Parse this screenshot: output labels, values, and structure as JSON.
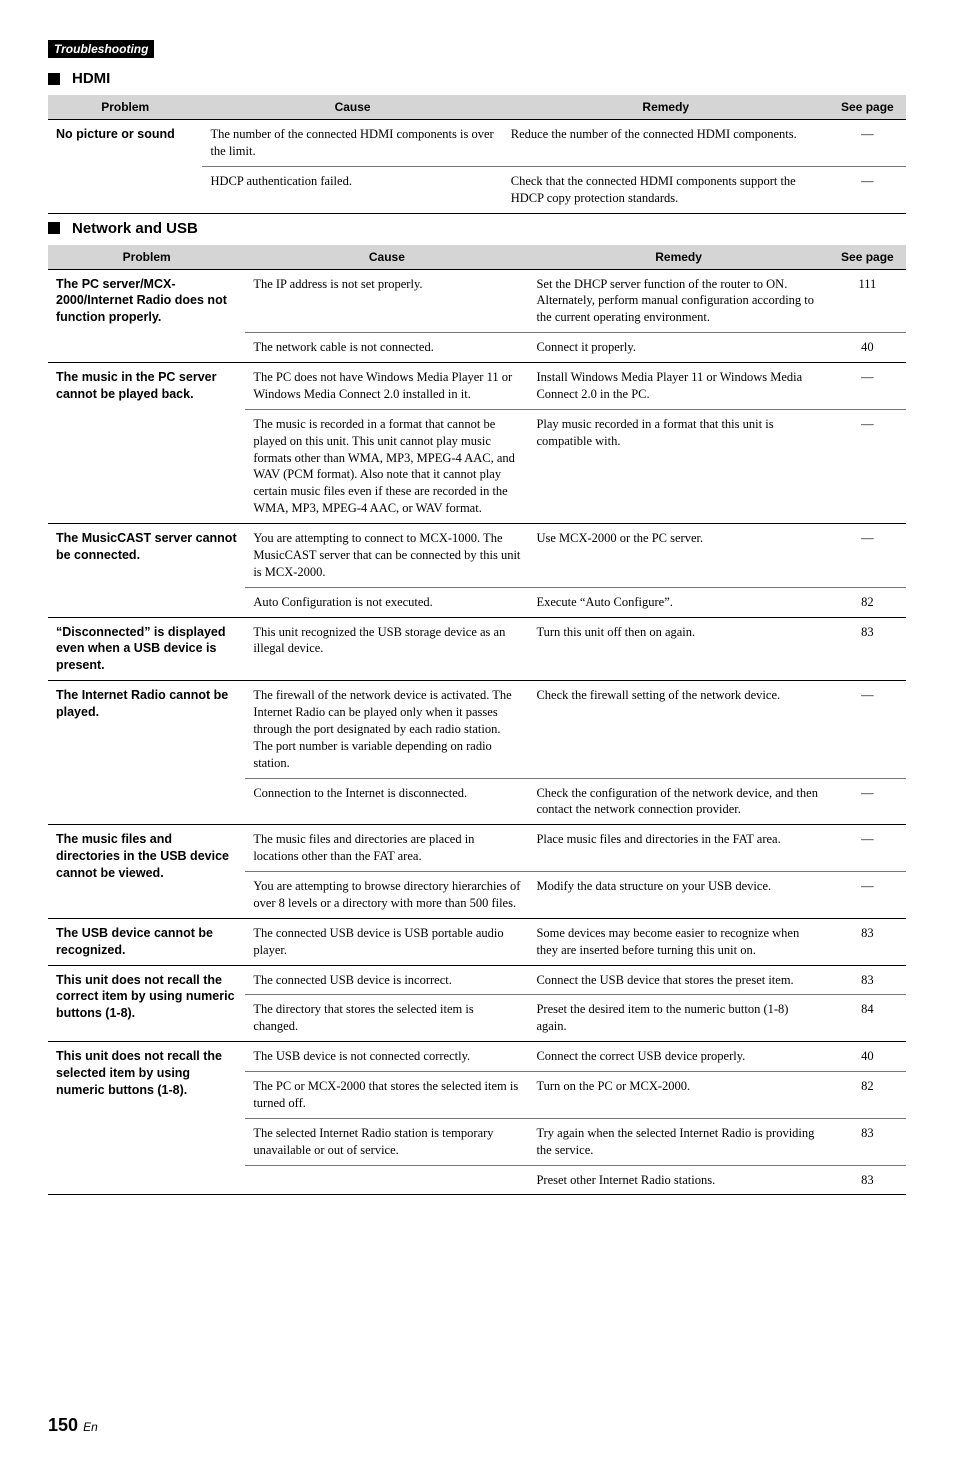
{
  "header_strip": "Troubleshooting",
  "hdmi": {
    "heading": "HDMI",
    "columns": {
      "problem": "Problem",
      "cause": "Cause",
      "remedy": "Remedy",
      "seepage": "See page"
    },
    "rows": [
      {
        "problem": "No picture or sound",
        "cause": "The number of the connected HDMI components is over the limit.",
        "remedy": "Reduce the number of the connected HDMI components.",
        "page": "—",
        "thin": true
      },
      {
        "problem": "",
        "cause": "HDCP authentication failed.",
        "remedy": "Check that the connected HDMI components support the HDCP copy protection standards.",
        "page": "—",
        "thin": false
      }
    ]
  },
  "net": {
    "heading": "Network and USB",
    "columns": {
      "problem": "Problem",
      "cause": "Cause",
      "remedy": "Remedy",
      "seepage": "See page"
    },
    "rows": [
      {
        "problem": "The PC server/MCX-2000/Internet Radio does not function properly.",
        "cause": "The IP address is not set properly.",
        "remedy": "Set the DHCP server function of the router to ON. Alternately, perform manual configuration according to the current operating environment.",
        "page": "111",
        "thin": true
      },
      {
        "problem": "",
        "cause": "The network cable is not connected.",
        "remedy": "Connect it properly.",
        "page": "40",
        "thin": false
      },
      {
        "problem": "The music in the PC server cannot be played back.",
        "cause": "The PC does not have Windows Media Player 11 or Windows Media Connect 2.0 installed in it.",
        "remedy": "Install Windows Media Player 11 or Windows Media Connect 2.0 in the PC.",
        "page": "—",
        "thin": true
      },
      {
        "problem": "",
        "cause": "The music is recorded in a format that cannot be played on this unit. This unit cannot play music formats other than WMA, MP3, MPEG-4 AAC, and WAV (PCM format). Also note that it cannot play certain music files even if these are recorded in the WMA, MP3, MPEG-4 AAC, or WAV format.",
        "remedy": "Play music recorded in a format that this unit is compatible with.",
        "page": "—",
        "thin": false
      },
      {
        "problem": "The MusicCAST server cannot be connected.",
        "cause": "You are attempting to connect to MCX-1000. The MusicCAST server that can be connected by this unit is MCX-2000.",
        "remedy": "Use MCX-2000 or the PC server.",
        "page": "—",
        "thin": true
      },
      {
        "problem": "",
        "cause": "Auto Configuration is not executed.",
        "remedy": "Execute “Auto Configure”.",
        "page": "82",
        "thin": false
      },
      {
        "problem": "“Disconnected” is displayed even when a USB device is present.",
        "cause": "This unit recognized the USB storage device as an illegal device.",
        "remedy": "Turn this unit off then on again.",
        "page": "83",
        "thin": false
      },
      {
        "problem": "The Internet Radio cannot be played.",
        "cause": "The firewall of the network device is activated. The Internet Radio can be played only when it passes through the port designated by each radio station. The port number is variable depending on radio station.",
        "remedy": "Check the firewall setting of the network device.",
        "page": "—",
        "thin": true
      },
      {
        "problem": "",
        "cause": "Connection to the Internet is disconnected.",
        "remedy": "Check the configuration of the network device, and then contact the network connection provider.",
        "page": "—",
        "thin": false
      },
      {
        "problem": "The music files and directories in the USB device cannot be viewed.",
        "cause": "The music files and directories are placed in locations other than the FAT area.",
        "remedy": "Place music files and directories in the FAT area.",
        "page": "—",
        "thin": true
      },
      {
        "problem": "",
        "cause": "You are attempting to browse directory hierarchies of over 8 levels or a directory with more than 500 files.",
        "remedy": "Modify the data structure on your USB device.",
        "page": "—",
        "thin": false
      },
      {
        "problem": "The USB device cannot be recognized.",
        "cause": "The connected USB device is USB portable audio player.",
        "remedy": "Some devices may become easier to recognize when they are inserted before turning this unit on.",
        "page": "83",
        "thin": false
      },
      {
        "problem": "This unit does not recall the correct item by using numeric buttons (1-8).",
        "cause": "The connected USB device is incorrect.",
        "remedy": "Connect the USB device that stores the preset item.",
        "page": "83",
        "thin": true
      },
      {
        "problem": "",
        "cause": "The directory that stores the selected item is changed.",
        "remedy": "Preset the desired item to the numeric button (1-8) again.",
        "page": "84",
        "thin": false
      },
      {
        "problem": "This unit does not recall the selected item by using numeric buttons (1-8).",
        "cause": "The USB device is not connected correctly.",
        "remedy": "Connect the correct USB device properly.",
        "page": "40",
        "thin": true
      },
      {
        "problem": "",
        "cause": "The PC or MCX-2000 that stores the selected item is turned off.",
        "remedy": "Turn on the PC or MCX-2000.",
        "page": "82",
        "thin": true
      },
      {
        "problem": "",
        "cause": "The selected Internet Radio station is temporary unavailable or out of service.",
        "remedy": "Try again when the selected Internet Radio is providing the service.",
        "page": "83",
        "thin": true
      },
      {
        "problem": "",
        "cause": "",
        "remedy": "Preset other Internet Radio stations.",
        "page": "83",
        "thin": false
      }
    ]
  },
  "footer": {
    "page_num": "150",
    "lang": "En"
  }
}
